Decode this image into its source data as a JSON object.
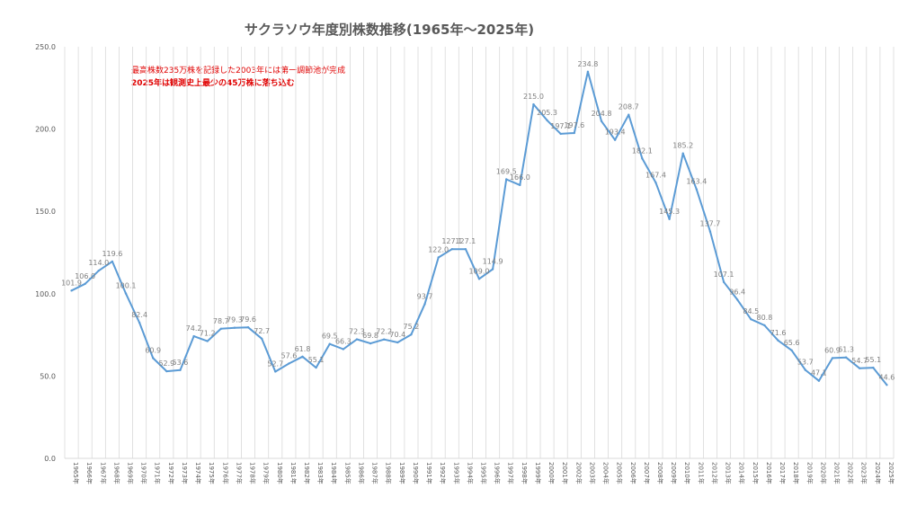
{
  "chart_data": {
    "type": "line",
    "title": "サクラソウ年度別株数推移(1965年～2025年)",
    "annotations": [
      "最高株数235万株を記録した2003年には第一調節池が完成",
      "2025年は観測史上最少の45万株に落ち込む"
    ],
    "x": [
      "1965年",
      "1966年",
      "1967年",
      "1968年",
      "1969年",
      "1970年",
      "1971年",
      "1972年",
      "1973年",
      "1974年",
      "1975年",
      "1976年",
      "1977年",
      "1978年",
      "1979年",
      "1980年",
      "1981年",
      "1982年",
      "1983年",
      "1984年",
      "1985年",
      "1986年",
      "1987年",
      "1988年",
      "1989年",
      "1990年",
      "1991年",
      "1992年",
      "1993年",
      "1994年",
      "1995年",
      "1996年",
      "1997年",
      "1998年",
      "1999年",
      "2000年",
      "2001年",
      "2002年",
      "2003年",
      "2004年",
      "2005年",
      "2006年",
      "2007年",
      "2008年",
      "2009年",
      "2010年",
      "2011年",
      "2012年",
      "2013年",
      "2014年",
      "2015年",
      "2016年",
      "2017年",
      "2018年",
      "2019年",
      "2020年",
      "2021年",
      "2022年",
      "2023年",
      "2024年",
      "2025年"
    ],
    "values": [
      101.9,
      106.0,
      114.0,
      119.6,
      100.1,
      82.4,
      60.9,
      52.9,
      53.6,
      74.2,
      71.2,
      78.7,
      79.3,
      79.6,
      72.7,
      52.7,
      57.6,
      61.8,
      55.1,
      69.5,
      66.3,
      72.3,
      69.8,
      72.2,
      70.4,
      75.2,
      93.7,
      122.0,
      127.1,
      127.1,
      109.0,
      114.9,
      169.5,
      166.0,
      215.0,
      205.3,
      197.1,
      197.6,
      234.8,
      204.8,
      193.4,
      208.7,
      182.1,
      167.4,
      145.3,
      185.2,
      163.4,
      137.7,
      107.1,
      96.4,
      84.5,
      80.8,
      71.6,
      65.6,
      53.7,
      47.1,
      60.9,
      61.3,
      54.7,
      55.1,
      44.6
    ],
    "value_labels": [
      "101.9",
      "106.0",
      "114.0",
      "119.6",
      "100.1",
      "82.4",
      "60.9",
      "52.9",
      "53.6",
      "74.2",
      "71.2",
      "78.7",
      "79.3",
      "79.6",
      "72.7",
      "52.7",
      "57.6",
      "61.8",
      "55.1",
      "69.5",
      "66.3",
      "72.3",
      "69.8",
      "72.2",
      "70.4",
      "75.2",
      "93.7",
      "122.0",
      "127.1",
      "127.1",
      "109.0",
      "114.9",
      "169.5",
      "166.0",
      "215.0",
      "205.3",
      "197.1",
      "197.6",
      "234.8",
      "204.8",
      "193.4",
      "208.7",
      "182.1",
      "167.4",
      "145.3",
      "185.2",
      "163.4",
      "137.7",
      "107.1",
      "96.4",
      "84.5",
      "80.8",
      "71.6",
      "65.6",
      "53.7",
      "47.1",
      "60.9",
      "61.3",
      "54.7",
      "55.1",
      "44.6"
    ],
    "yticks": [
      "0.0",
      "50.0",
      "100.0",
      "150.0",
      "200.0",
      "250.0"
    ],
    "ylim": [
      0,
      250
    ],
    "grid": "vertical",
    "colors": {
      "line": "#5b9bd5",
      "grid": "#d9d9d9",
      "annotation": "#e00000"
    }
  }
}
